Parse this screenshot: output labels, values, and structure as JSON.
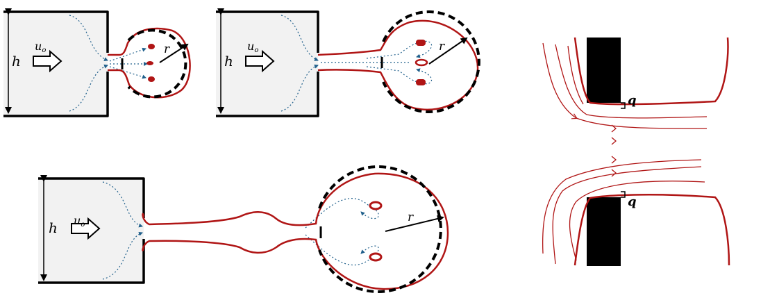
{
  "figure": {
    "panels": [
      {
        "id": "stage-1",
        "height_label": "h",
        "velocity_label": "u",
        "velocity_subscript": "o",
        "radius_label": "r"
      },
      {
        "id": "stage-2",
        "height_label": "h",
        "velocity_label": "u",
        "velocity_subscript": "o",
        "radius_label": "r"
      },
      {
        "id": "stage-3",
        "height_label": "h",
        "velocity_label": "u",
        "velocity_subscript": "o",
        "radius_label": "r"
      }
    ],
    "detail": {
      "gap_label_top": "q",
      "gap_label_bottom": "q"
    },
    "colors": {
      "membrane": "#b01515",
      "flow": "#1f5f8b",
      "wall": "#000000"
    }
  }
}
